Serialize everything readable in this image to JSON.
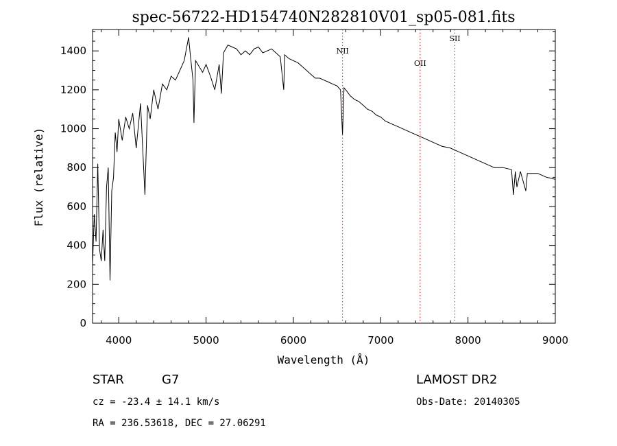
{
  "chart_data": {
    "type": "line",
    "title": "spec-56722-HD154740N282810V01_sp05-081.fits",
    "xlabel": "Wavelength (Å)",
    "ylabel": "Flux (relative)",
    "xlim": [
      3700,
      9000
    ],
    "ylim": [
      0,
      1510
    ],
    "x_ticks": [
      4000,
      5000,
      6000,
      7000,
      8000,
      9000
    ],
    "y_ticks": [
      0,
      200,
      400,
      600,
      800,
      1000,
      1200,
      1400
    ],
    "grid": false,
    "line_color": "#000000",
    "marker_color": "#ff0000",
    "series": [
      {
        "x": [
          3700,
          3720,
          3740,
          3760,
          3780,
          3800,
          3820,
          3840,
          3860,
          3880,
          3900,
          3920,
          3940,
          3960,
          3980,
          4000,
          4040,
          4080,
          4120,
          4160,
          4200,
          4250,
          4300,
          4330,
          4360,
          4400,
          4450,
          4500,
          4550,
          4600,
          4650,
          4700,
          4750,
          4800,
          4820,
          4850,
          4861,
          4880,
          4920,
          4960,
          5000,
          5050,
          5100,
          5150,
          5175,
          5200,
          5250,
          5300,
          5350,
          5400,
          5450,
          5500,
          5550,
          5600,
          5650,
          5700,
          5750,
          5800,
          5850,
          5890,
          5900,
          5950,
          6000,
          6050,
          6100,
          6150,
          6200,
          6250,
          6300,
          6350,
          6400,
          6450,
          6500,
          6540,
          6563,
          6580,
          6600,
          6650,
          6700,
          6750,
          6800,
          6850,
          6900,
          6950,
          7000,
          7050,
          7100,
          7150,
          7200,
          7300,
          7400,
          7500,
          7600,
          7700,
          7800,
          7900,
          8000,
          8100,
          8200,
          8300,
          8400,
          8498,
          8520,
          8542,
          8560,
          8600,
          8662,
          8680,
          8750,
          8800,
          8850,
          8900,
          8950,
          9000
        ],
        "y": [
          300,
          560,
          420,
          820,
          380,
          320,
          480,
          320,
          700,
          800,
          220,
          680,
          750,
          980,
          880,
          1050,
          940,
          1060,
          1000,
          1080,
          900,
          1130,
          660,
          1120,
          1050,
          1200,
          1100,
          1230,
          1200,
          1270,
          1250,
          1300,
          1350,
          1470,
          1380,
          1250,
          1030,
          1350,
          1320,
          1290,
          1330,
          1270,
          1200,
          1330,
          1180,
          1390,
          1430,
          1420,
          1410,
          1380,
          1400,
          1380,
          1410,
          1420,
          1390,
          1400,
          1410,
          1390,
          1370,
          1200,
          1380,
          1360,
          1350,
          1340,
          1320,
          1300,
          1280,
          1260,
          1260,
          1250,
          1240,
          1230,
          1220,
          1200,
          970,
          1210,
          1200,
          1170,
          1150,
          1140,
          1120,
          1100,
          1090,
          1070,
          1060,
          1040,
          1030,
          1020,
          1010,
          990,
          970,
          950,
          930,
          910,
          900,
          880,
          860,
          840,
          820,
          800,
          800,
          790,
          660,
          780,
          700,
          780,
          680,
          770,
          770,
          770,
          760,
          750,
          745,
          740
        ]
      }
    ],
    "annotations": [
      {
        "label": "NII",
        "x": 6563
      },
      {
        "label": "OII",
        "x": 7452
      },
      {
        "label": "SII",
        "x": 7850
      }
    ]
  },
  "info": {
    "object_class": "STAR",
    "subclass": "G7",
    "survey": "LAMOST DR2",
    "redshift": "cz = -23.4 ± 14.1 km/s",
    "obs_date": "Obs-Date: 20140305",
    "coords": "RA = 236.53618, DEC =  27.06291"
  }
}
